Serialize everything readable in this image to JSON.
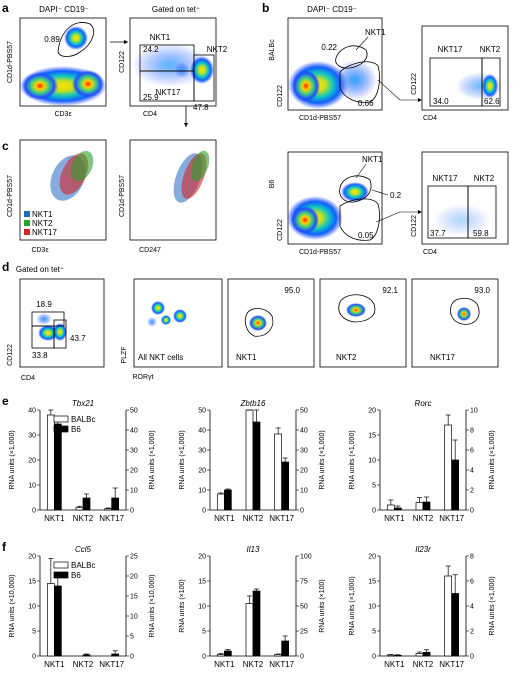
{
  "panels": {
    "a": {
      "letter": "a",
      "title1": "DAPI⁻ CD19⁻",
      "title2": "Gated on tet⁺",
      "plot1": {
        "ylabel": "CD1d-PBS57",
        "xlabel": "CD3ε",
        "gate": "0.89"
      },
      "plot2": {
        "ylabel": "CD122",
        "xlabel": "CD4",
        "labels": [
          "NKT1",
          "NKT2",
          "NKT17"
        ],
        "values": [
          "24.2",
          "25.9",
          "47.8"
        ]
      }
    },
    "b": {
      "letter": "b",
      "title1": "DAPI⁻ CD19⁻",
      "top": {
        "ylabel1": "BALBc",
        "ylabel2": "CD122",
        "xlabel": "CD1d-PBS57",
        "nkt1_label": "NKT1",
        "nkt1_value": "0.22",
        "other_value": "0.66",
        "right": {
          "ylabel": "CD122",
          "xlabel": "CD4",
          "labels": [
            "NKT17",
            "NKT2"
          ],
          "values": [
            "34.0",
            "62.6"
          ]
        }
      },
      "bottom": {
        "ylabel1": "B6",
        "ylabel2": "CD122",
        "xlabel": "CD1d-PBS57",
        "nkt1_label": "NKT1",
        "nkt1_value": "0.2",
        "other_value": "0.05",
        "right": {
          "ylabel": "CD122",
          "xlabel": "CD4",
          "labels": [
            "NKT17",
            "NKT2"
          ],
          "values": [
            "37.7",
            "59.8"
          ]
        }
      }
    },
    "c": {
      "letter": "c",
      "plot1": {
        "ylabel": "CD1d-PBS57",
        "xlabel": "CD3ε"
      },
      "plot2": {
        "ylabel": "CD1d-PBS57",
        "xlabel": "CD247"
      },
      "legend": [
        {
          "label": "NKT1",
          "color": "#2166c5"
        },
        {
          "label": "NKT2",
          "color": "#2ca02c"
        },
        {
          "label": "NKT17",
          "color": "#d62728"
        }
      ]
    },
    "d": {
      "letter": "d",
      "title": "Gated on tet⁺",
      "plot1": {
        "ylabel": "CD122",
        "xlabel": "CD4",
        "values": [
          "18.9",
          "43.7",
          "33.8"
        ]
      },
      "shared_ylabel": "PLZF",
      "shared_xlabel": "RORγt",
      "plots": [
        {
          "label": "All NKT cells",
          "value": ""
        },
        {
          "label": "NKT1",
          "value": "95.0"
        },
        {
          "label": "NKT2",
          "value": "92.1"
        },
        {
          "label": "NKT17",
          "value": "93.0"
        }
      ]
    },
    "e": {
      "letter": "e"
    },
    "f": {
      "letter": "f"
    }
  },
  "chart_data": [
    {
      "type": "bar",
      "panel": "e",
      "title": "Tbx21",
      "categories": [
        "NKT1",
        "NKT2",
        "NKT17"
      ],
      "ylabel": "RNA units (×1,000)",
      "ylim": [
        0,
        40
      ],
      "yticks": [
        0,
        10,
        20,
        30,
        40
      ],
      "ylabel_right": "RNA units (×1,000)",
      "ylim_right": [
        0,
        50
      ],
      "yticks_right": [
        0,
        10,
        20,
        30,
        40,
        50
      ],
      "series": [
        {
          "name": "BALBc",
          "fill": "#ffffff",
          "axis": "left",
          "values": [
            38,
            1,
            0.5
          ],
          "errors": [
            2,
            0.5,
            0.3
          ]
        },
        {
          "name": "B6",
          "fill": "#000000",
          "axis": "right",
          "values": [
            43,
            6,
            6
          ],
          "errors": [
            1.5,
            2,
            5
          ]
        }
      ]
    },
    {
      "type": "bar",
      "panel": "e",
      "title": "Zbtb16",
      "categories": [
        "NKT1",
        "NKT2",
        "NKT17"
      ],
      "ylabel": "RNA units (×1,000)",
      "ylim": [
        0,
        50
      ],
      "yticks": [
        0,
        10,
        20,
        30,
        40,
        50
      ],
      "ylabel_right": "RNA units (×1,000)",
      "ylim_right": [
        0,
        50
      ],
      "yticks_right": [
        0,
        10,
        20,
        30,
        40,
        50
      ],
      "series": [
        {
          "name": "BALBc",
          "fill": "#ffffff",
          "axis": "left",
          "values": [
            8,
            50,
            38
          ],
          "errors": [
            0.5,
            7,
            3
          ]
        },
        {
          "name": "B6",
          "fill": "#000000",
          "axis": "right",
          "values": [
            10,
            44,
            24
          ],
          "errors": [
            0.5,
            7,
            2
          ]
        }
      ]
    },
    {
      "type": "bar",
      "panel": "e",
      "title": "Rorc",
      "categories": [
        "NKT1",
        "NKT2",
        "NKT17"
      ],
      "ylabel": "RNA units (×1,000)",
      "ylim": [
        0,
        20
      ],
      "yticks": [
        0,
        5,
        10,
        15,
        20
      ],
      "ylabel_right": "RNA units (×1,000)",
      "ylim_right": [
        0,
        10
      ],
      "yticks_right": [
        0,
        2,
        4,
        6,
        8,
        10
      ],
      "series": [
        {
          "name": "BALBc",
          "fill": "#ffffff",
          "axis": "left",
          "values": [
            1,
            1.5,
            17
          ],
          "errors": [
            1,
            1,
            2
          ]
        },
        {
          "name": "B6",
          "fill": "#000000",
          "axis": "right",
          "values": [
            0.2,
            0.8,
            5
          ],
          "errors": [
            0.2,
            0.5,
            2
          ]
        }
      ]
    },
    {
      "type": "bar",
      "panel": "f",
      "title": "Ccl5",
      "categories": [
        "NKT1",
        "NKT2",
        "NKT17"
      ],
      "ylabel": "RNA units (×10,000)",
      "ylim": [
        0,
        20
      ],
      "yticks": [
        0,
        5,
        10,
        15,
        20
      ],
      "ylabel_right": "RNA units (×10,000)",
      "ylim_right": [
        0,
        25
      ],
      "yticks_right": [
        0,
        5,
        10,
        15,
        20,
        25
      ],
      "series": [
        {
          "name": "BALBc",
          "fill": "#ffffff",
          "axis": "left",
          "values": [
            14.5,
            0,
            0
          ],
          "errors": [
            5,
            0,
            0
          ]
        },
        {
          "name": "B6",
          "fill": "#000000",
          "axis": "right",
          "values": [
            17.5,
            0.3,
            0.5
          ],
          "errors": [
            2.5,
            0.2,
            0.8
          ]
        }
      ]
    },
    {
      "type": "bar",
      "panel": "f",
      "title": "Il13",
      "categories": [
        "NKT1",
        "NKT2",
        "NKT17"
      ],
      "ylabel": "RNA units (×100)",
      "ylim": [
        0,
        20
      ],
      "yticks": [
        0,
        5,
        10,
        15,
        20
      ],
      "ylabel_right": "RNA units (×100)",
      "ylim_right": [
        0,
        100
      ],
      "yticks_right": [
        0,
        25,
        50,
        75,
        100
      ],
      "series": [
        {
          "name": "BALBc",
          "fill": "#ffffff",
          "axis": "left",
          "values": [
            0.3,
            10.5,
            0.3
          ],
          "errors": [
            0.2,
            1.5,
            0.1
          ]
        },
        {
          "name": "B6",
          "fill": "#000000",
          "axis": "right",
          "values": [
            5,
            65,
            15
          ],
          "errors": [
            1.5,
            2,
            5
          ]
        }
      ]
    },
    {
      "type": "bar",
      "panel": "f",
      "title": "Il23r",
      "categories": [
        "NKT1",
        "NKT2",
        "NKT17"
      ],
      "ylabel": "RNA units (×1,000)",
      "ylim": [
        0,
        20
      ],
      "yticks": [
        0,
        5,
        10,
        15,
        20
      ],
      "ylabel_right": "RNA units (×1,000)",
      "ylim_right": [
        0,
        8
      ],
      "yticks_right": [
        0,
        2,
        4,
        6,
        8
      ],
      "series": [
        {
          "name": "BALBc",
          "fill": "#ffffff",
          "axis": "left",
          "values": [
            0.2,
            0.5,
            16
          ],
          "errors": [
            0.1,
            0.3,
            2
          ]
        },
        {
          "name": "B6",
          "fill": "#000000",
          "axis": "right",
          "values": [
            0.05,
            0.3,
            5
          ],
          "errors": [
            0.05,
            0.2,
            1.5
          ]
        }
      ]
    }
  ]
}
